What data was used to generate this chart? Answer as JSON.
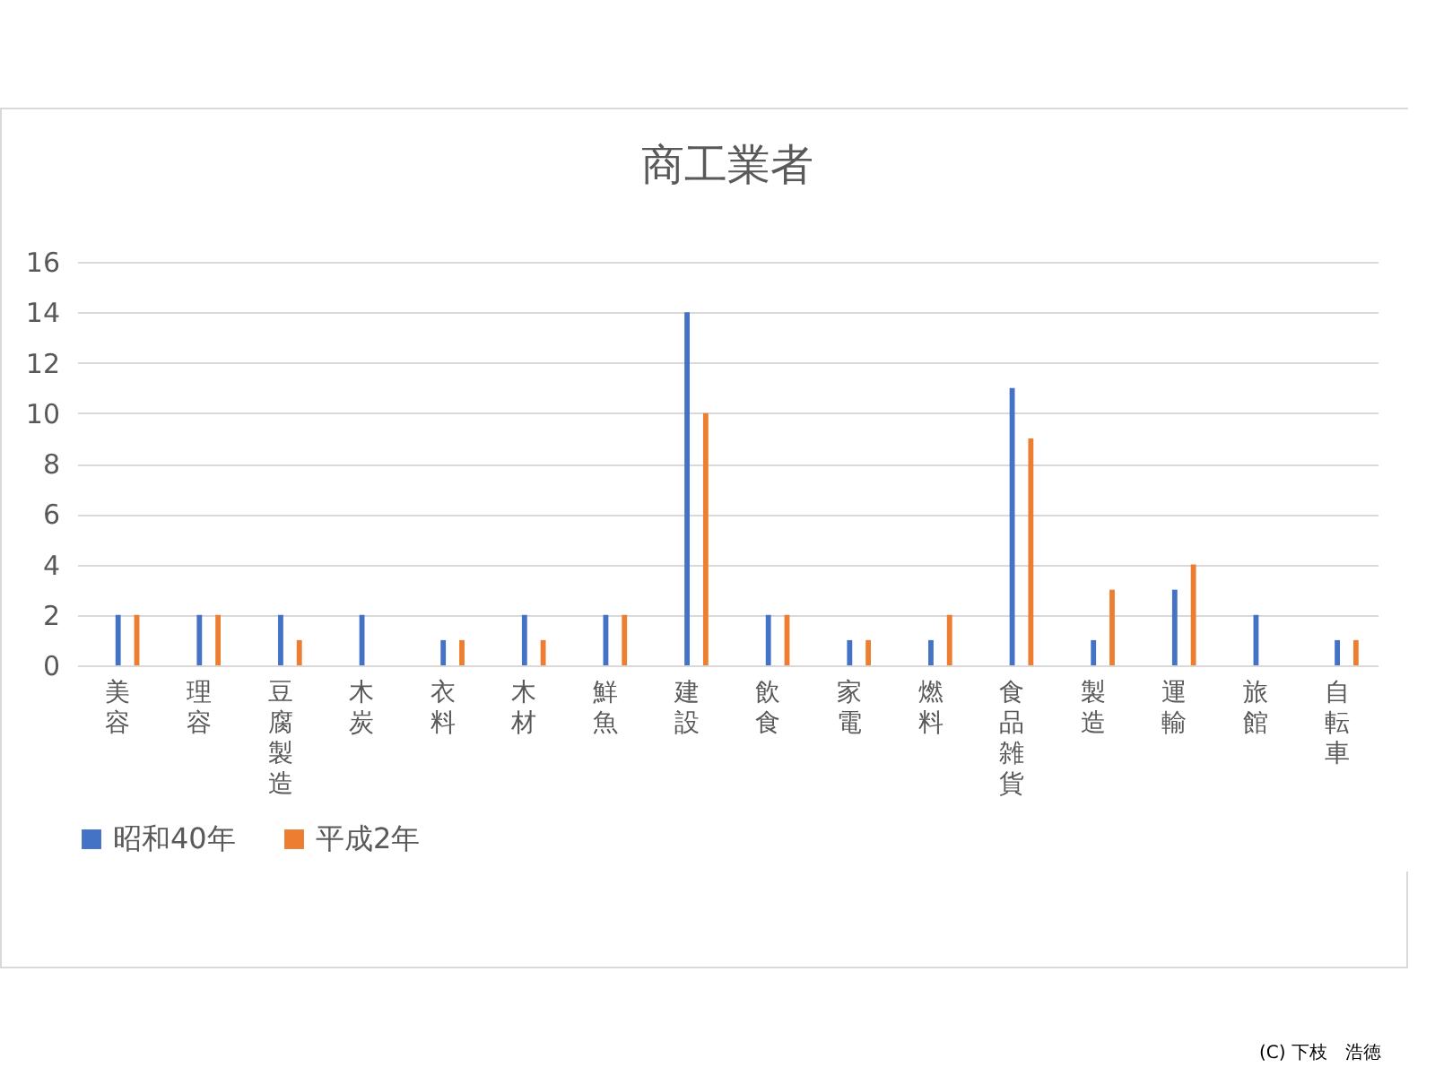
{
  "chart_data": {
    "type": "bar",
    "title": "商工業者",
    "categories": [
      "美容",
      "理容",
      "豆腐製造",
      "木炭",
      "衣料",
      "木材",
      "鮮魚",
      "建設",
      "飲食",
      "家電",
      "燃料",
      "食品雑貨",
      "製造",
      "運輸",
      "旅館",
      "自転車"
    ],
    "series": [
      {
        "name": "昭和40年",
        "color": "#4472c4",
        "values": [
          2,
          2,
          2,
          2,
          1,
          2,
          2,
          14,
          2,
          1,
          1,
          11,
          1,
          3,
          2,
          1
        ]
      },
      {
        "name": "平成2年",
        "color": "#ed7d31",
        "values": [
          2,
          2,
          1,
          0,
          1,
          1,
          2,
          10,
          2,
          1,
          2,
          9,
          3,
          4,
          0,
          1
        ]
      }
    ],
    "ylim": [
      0,
      16
    ],
    "yticks": [
      0,
      2,
      4,
      6,
      8,
      10,
      12,
      14,
      16
    ],
    "grid": "y",
    "legend": "bottom",
    "annotations": [
      "(C) 下枝　浩徳"
    ]
  }
}
